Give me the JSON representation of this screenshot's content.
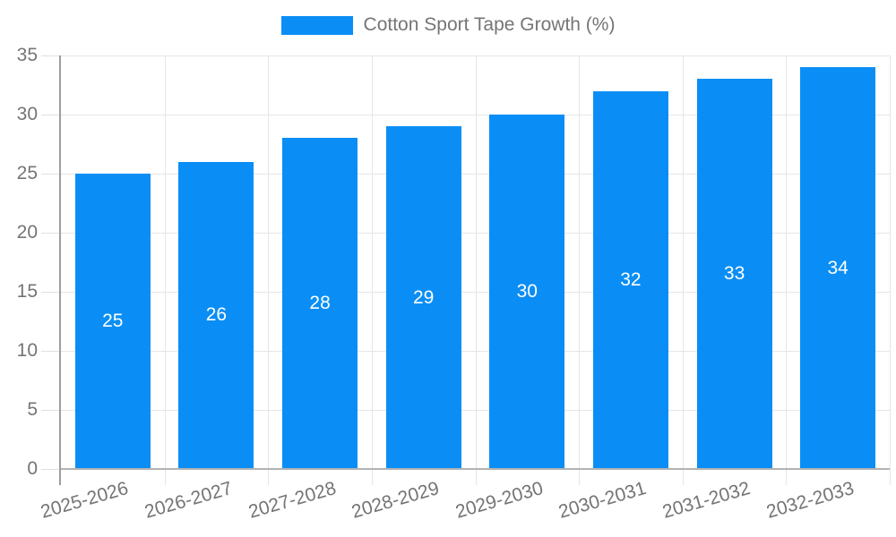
{
  "chart_data": {
    "type": "bar",
    "title": "Cotton Sport Tape Growth (%)",
    "categories": [
      "2025-2026",
      "2026-2027",
      "2027-2028",
      "2028-2029",
      "2029-2030",
      "2030-2031",
      "2031-2032",
      "2032-2033"
    ],
    "values": [
      25,
      26,
      28,
      29,
      30,
      32,
      33,
      34
    ],
    "xlabel": "",
    "ylabel": "",
    "ylim": [
      0,
      35
    ],
    "yticks": [
      0,
      5,
      10,
      15,
      20,
      25,
      30,
      35
    ],
    "grid": "on",
    "legend_position": "top-center",
    "bar_color": "#0A8EF5",
    "bar_value_label_color": "#ffffff",
    "axis_text_color": "#757575",
    "grid_color": "#e6e6e6",
    "axis_line_color": "#9e9e9e"
  }
}
